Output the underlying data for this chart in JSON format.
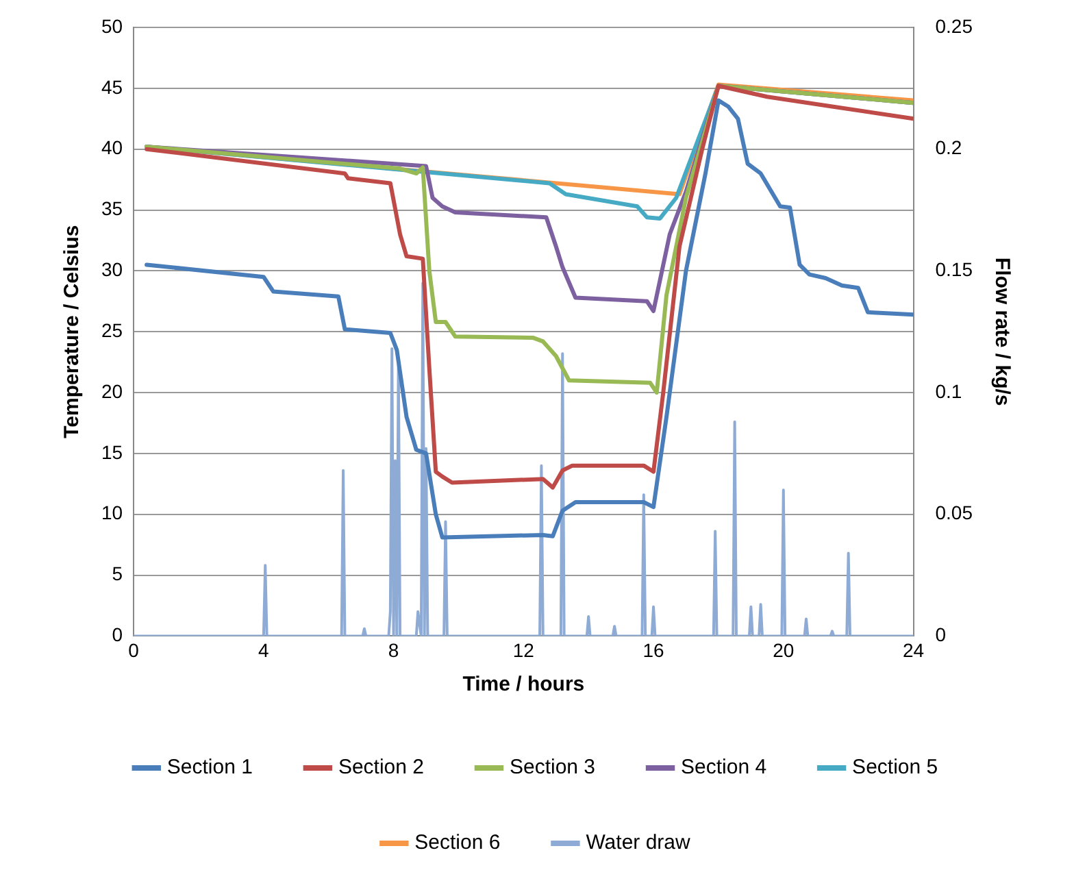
{
  "chart_data": {
    "type": "line",
    "xlabel": "Time / hours",
    "ylabel": "Temperature / Celsius",
    "y2label": "Flow rate / kg/s",
    "xlim": [
      0,
      24
    ],
    "xticks": [
      0,
      4,
      8,
      12,
      16,
      20,
      24
    ],
    "ylim": [
      0,
      50
    ],
    "yticks": [
      0,
      5,
      10,
      15,
      20,
      25,
      30,
      35,
      40,
      45,
      50
    ],
    "y2lim": [
      0,
      0.25
    ],
    "y2ticks": [
      0,
      0.05,
      0.1,
      0.15,
      0.2,
      0.25
    ],
    "grid": "y",
    "legend": "bottom",
    "marker": "none",
    "line_style": "solid",
    "series": [
      {
        "name": "Section 1",
        "color": "#4a7ebb",
        "x": [
          0.4,
          4.0,
          4.3,
          6.3,
          6.5,
          7.9,
          8.1,
          8.4,
          8.7,
          9.0,
          9.3,
          9.5,
          12.6,
          12.9,
          13.2,
          13.6,
          15.7,
          16.0,
          16.4,
          17.0,
          17.6,
          18.0,
          18.3,
          18.6,
          18.9,
          19.3,
          19.9,
          20.2,
          20.5,
          20.8,
          21.3,
          21.8,
          22.3,
          22.6,
          24
        ],
        "values": [
          30.5,
          29.5,
          28.3,
          27.9,
          25.2,
          24.9,
          23.5,
          18,
          15.3,
          15,
          10,
          8.1,
          8.3,
          8.2,
          10.3,
          11,
          11,
          10.6,
          18,
          30,
          38,
          44,
          43.5,
          42.5,
          38.8,
          38,
          35.3,
          35.2,
          30.5,
          29.7,
          29.4,
          28.8,
          28.6,
          26.6,
          26.4
        ]
      },
      {
        "name": "Section 2",
        "color": "#be4b48",
        "x": [
          0.4,
          6.5,
          6.6,
          7.9,
          8.2,
          8.4,
          8.9,
          9.1,
          9.3,
          9.5,
          9.8,
          12.6,
          12.9,
          13.2,
          13.5,
          15.7,
          16.0,
          16.3,
          16.8,
          17.5,
          18.0,
          19.5,
          21.5,
          24
        ],
        "values": [
          40,
          38,
          37.6,
          37.2,
          33,
          31.2,
          31,
          22,
          13.5,
          13.1,
          12.6,
          12.9,
          12.2,
          13.6,
          14,
          14,
          13.5,
          20,
          32,
          40,
          45.2,
          44.3,
          43.5,
          42.5
        ]
      },
      {
        "name": "Section 3",
        "color": "#98b954",
        "x": [
          0.4,
          8.2,
          8.7,
          8.9,
          9.1,
          9.3,
          9.6,
          9.9,
          12.3,
          12.6,
          13.0,
          13.4,
          15.9,
          16.1,
          16.4,
          17.0,
          18.0,
          24
        ],
        "values": [
          40.2,
          38.4,
          38,
          38.5,
          30,
          25.8,
          25.8,
          24.6,
          24.5,
          24.2,
          23,
          21,
          20.8,
          20,
          28,
          36,
          45.2,
          43.8
        ]
      },
      {
        "name": "Section 4",
        "color": "#7d60a0",
        "x": [
          0.4,
          9.0,
          9.2,
          9.5,
          9.9,
          12.7,
          13.0,
          13.2,
          13.6,
          15.8,
          16.0,
          16.5,
          17.0,
          18.0,
          24
        ],
        "values": [
          40.2,
          38.6,
          36,
          35.3,
          34.8,
          34.4,
          32,
          30.3,
          27.8,
          27.5,
          26.7,
          33,
          36.5,
          45.2,
          43.8
        ]
      },
      {
        "name": "Section 5",
        "color": "#46aac5",
        "x": [
          0.4,
          12.8,
          13.3,
          15.5,
          15.8,
          16.2,
          16.7,
          18.0,
          24
        ],
        "values": [
          40.2,
          37.2,
          36.3,
          35.3,
          34.4,
          34.3,
          36,
          45.2,
          43.8
        ]
      },
      {
        "name": "Section 6",
        "color": "#f79646",
        "x": [
          0.4,
          16.8,
          18.0,
          24
        ],
        "values": [
          40.2,
          36.3,
          45.3,
          44.0
        ]
      },
      {
        "name": "Water draw",
        "color": "#8eabd5",
        "axis": "y2",
        "x": [
          0,
          4.0,
          4.05,
          4.1,
          6.4,
          6.45,
          6.5,
          7.05,
          7.1,
          7.15,
          7.85,
          7.9,
          7.95,
          8.0,
          8.05,
          8.1,
          8.15,
          8.2,
          8.25,
          8.3,
          8.7,
          8.75,
          8.85,
          8.9,
          8.95,
          9.0,
          9.05,
          9.1,
          9.15,
          9.55,
          9.6,
          9.65,
          12.5,
          12.55,
          12.6,
          13.15,
          13.2,
          13.25,
          13.95,
          14.0,
          14.05,
          14.75,
          14.8,
          14.85,
          15.65,
          15.7,
          15.75,
          15.95,
          16.0,
          16.05,
          17.85,
          17.9,
          17.95,
          18.45,
          18.5,
          18.55,
          18.95,
          19.0,
          19.05,
          19.25,
          19.3,
          19.35,
          19.95,
          20.0,
          20.05,
          20.65,
          20.7,
          20.75,
          21.45,
          21.5,
          21.55,
          21.95,
          22.0,
          22.05,
          24
        ],
        "values": [
          0,
          0,
          0.029,
          0,
          0,
          0.068,
          0,
          0,
          0.003,
          0,
          0,
          0.01,
          0.118,
          0,
          0.072,
          0,
          0.113,
          0,
          0,
          0,
          0,
          0.01,
          0,
          0.145,
          0,
          0.077,
          0,
          0,
          0,
          0,
          0.047,
          0,
          0,
          0.07,
          0,
          0,
          0.116,
          0,
          0,
          0.008,
          0,
          0,
          0.004,
          0,
          0,
          0.058,
          0,
          0,
          0.012,
          0,
          0,
          0.043,
          0,
          0,
          0.088,
          0,
          0,
          0.012,
          0,
          0,
          0.013,
          0,
          0,
          0.06,
          0,
          0,
          0.007,
          0,
          0,
          0.002,
          0,
          0,
          0.034,
          0,
          0
        ]
      }
    ]
  }
}
